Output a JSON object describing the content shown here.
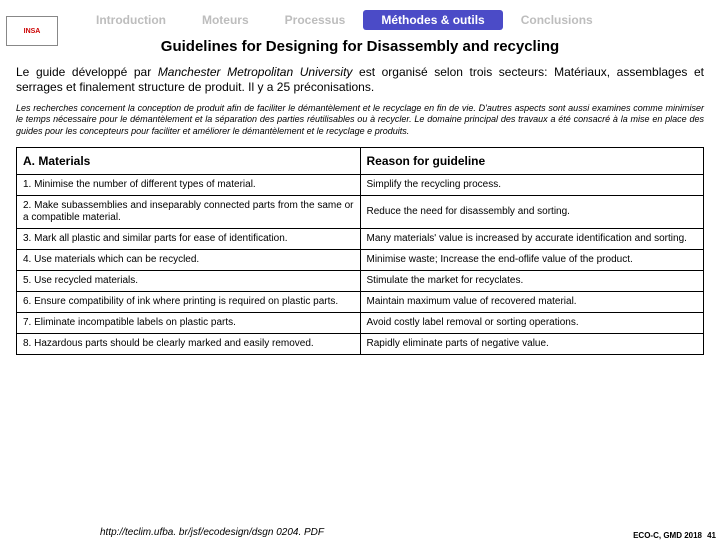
{
  "logo_text": "INSA",
  "tabs": [
    {
      "label": "Introduction",
      "active": false
    },
    {
      "label": "Moteurs",
      "active": false
    },
    {
      "label": "Processus",
      "active": false
    },
    {
      "label": "Méthodes & outils",
      "active": true
    },
    {
      "label": "Conclusions",
      "active": false
    }
  ],
  "title": "Guidelines for Designing for Disassembly and recycling",
  "intro_pre": "Le guide développé par ",
  "intro_em": "Manchester Metropolitan University",
  "intro_post": " est organisé selon trois secteurs: Matériaux,  assemblages et serrages et finalement structure de produit. Il y a 25 préconisations.",
  "small_intro": "Les recherches concernent la conception de produit afin de faciliter le démantèlement et le recyclage en fin de vie. D'autres aspects sont aussi examines comme minimiser le temps nécessaire pour le démantèlement et la séparation des parties réutilisables ou à recycler. Le domaine principal des travaux a été consacré à la mise en place des guides pour les concepteurs pour faciliter et améliorer le démantèlement et le recyclage e produits.",
  "table": {
    "header_left": "A. Materials",
    "header_right": "Reason for guideline",
    "rows": [
      {
        "g": "1. Minimise the number of different types of material.",
        "r": "Simplify the recycling process."
      },
      {
        "g": "2. Make subassemblies and inseparably connected parts from the same or a compatible material.",
        "r": "Reduce the need for disassembly and sorting."
      },
      {
        "g": "3. Mark all plastic and similar parts for ease of identification.",
        "r": "Many materials' value is increased by accurate identification and sorting."
      },
      {
        "g": "4. Use materials which can be recycled.",
        "r": "Minimise waste; Increase the end-oflife value of the product."
      },
      {
        "g": "5. Use recycled materials.",
        "r": "Stimulate the market for recyclates."
      },
      {
        "g": "6. Ensure compatibility of ink where printing is required on plastic parts.",
        "r": "Maintain maximum value of recovered material."
      },
      {
        "g": "7. Eliminate incompatible labels on plastic parts.",
        "r": "Avoid costly label removal or sorting operations."
      },
      {
        "g": "8. Hazardous parts should be clearly marked and easily removed.",
        "r": "Rapidly eliminate parts of negative value."
      }
    ]
  },
  "url": "http://teclim.ufba. br/jsf/ecodesign/dsgn 0204. PDF",
  "footer_course": "ECO-C, GMD 2018",
  "page_number": "41",
  "colors": {
    "tab_inactive_text": "#bdbdbd",
    "tab_active_bg": "#4b4bc7",
    "tab_active_text": "#ffffff",
    "border": "#000000",
    "background": "#ffffff"
  },
  "fonts": {
    "title_size_pt": 15,
    "intro_size_pt": 12,
    "small_size_pt": 9,
    "table_body_size_pt": 10,
    "table_header_size_pt": 12
  }
}
